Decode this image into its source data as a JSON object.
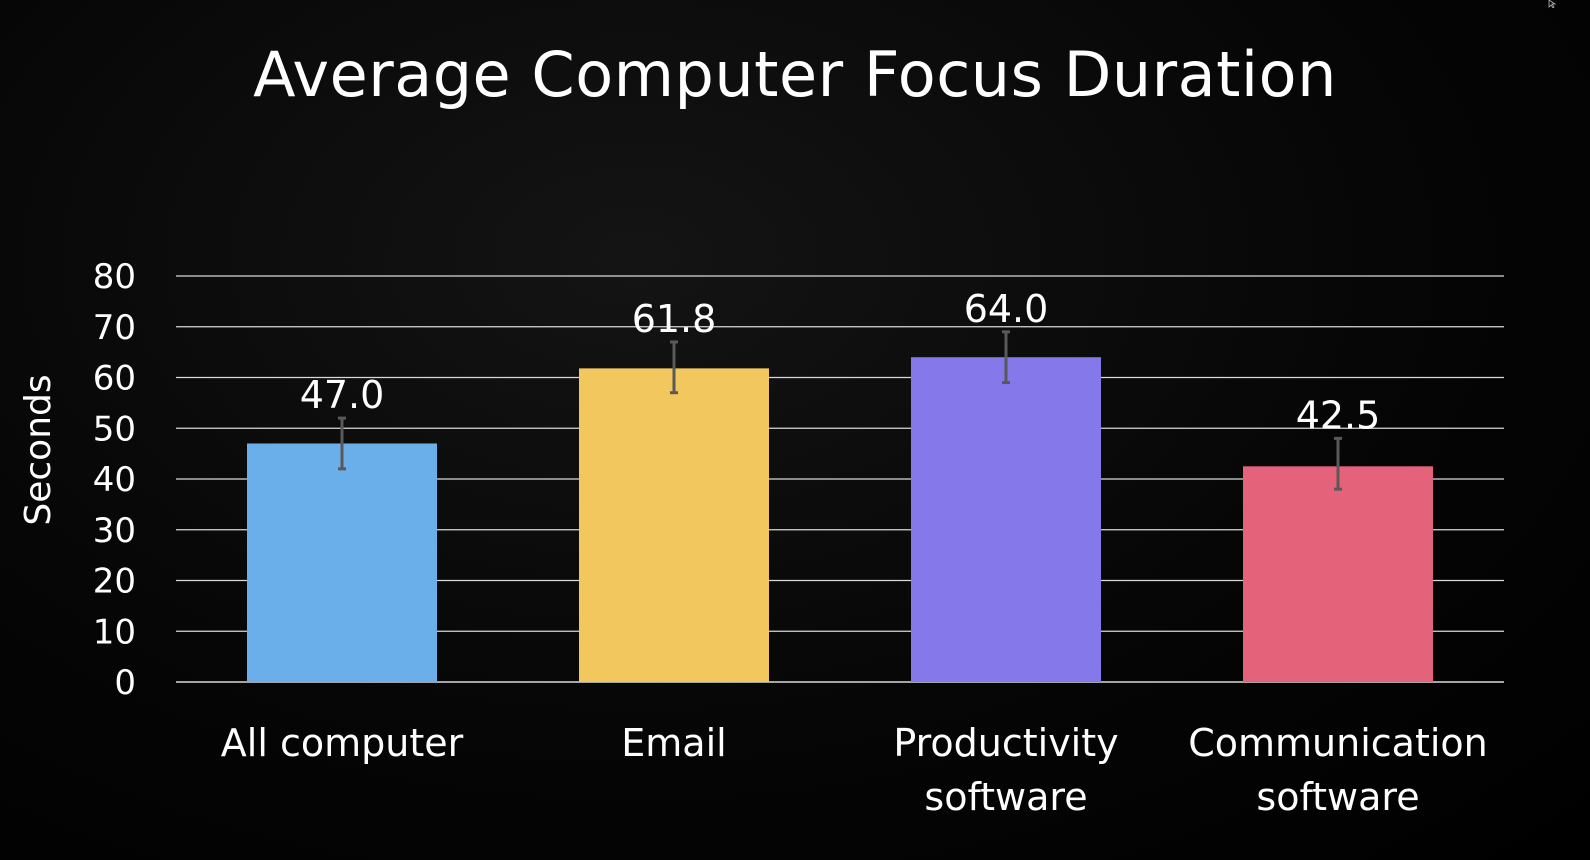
{
  "title": "Average Computer Focus Duration",
  "chart_data": {
    "type": "bar",
    "title": "Average Computer Focus Duration",
    "xlabel": "",
    "ylabel": "Seconds",
    "ylim": [
      0,
      80
    ],
    "yticks": [
      0,
      10,
      20,
      30,
      40,
      50,
      60,
      70,
      80
    ],
    "grid": true,
    "categories": [
      [
        "All computer"
      ],
      [
        "Email"
      ],
      [
        "Productivity",
        "software"
      ],
      [
        "Communication",
        "software"
      ]
    ],
    "values": [
      47.0,
      61.8,
      64.0,
      42.5
    ],
    "value_labels": [
      "47.0",
      "61.8",
      "64.0",
      "42.5"
    ],
    "error_bars": [
      [
        42,
        52
      ],
      [
        57,
        67
      ],
      [
        59,
        69
      ],
      [
        38,
        48
      ]
    ],
    "colors": [
      "#6aaeea",
      "#f2c75e",
      "#8478ea",
      "#e5637a"
    ]
  },
  "colors": {
    "background": "#000000",
    "text": "#ffffff",
    "grid": "#d9d9d9",
    "error_bar": "#595959"
  }
}
